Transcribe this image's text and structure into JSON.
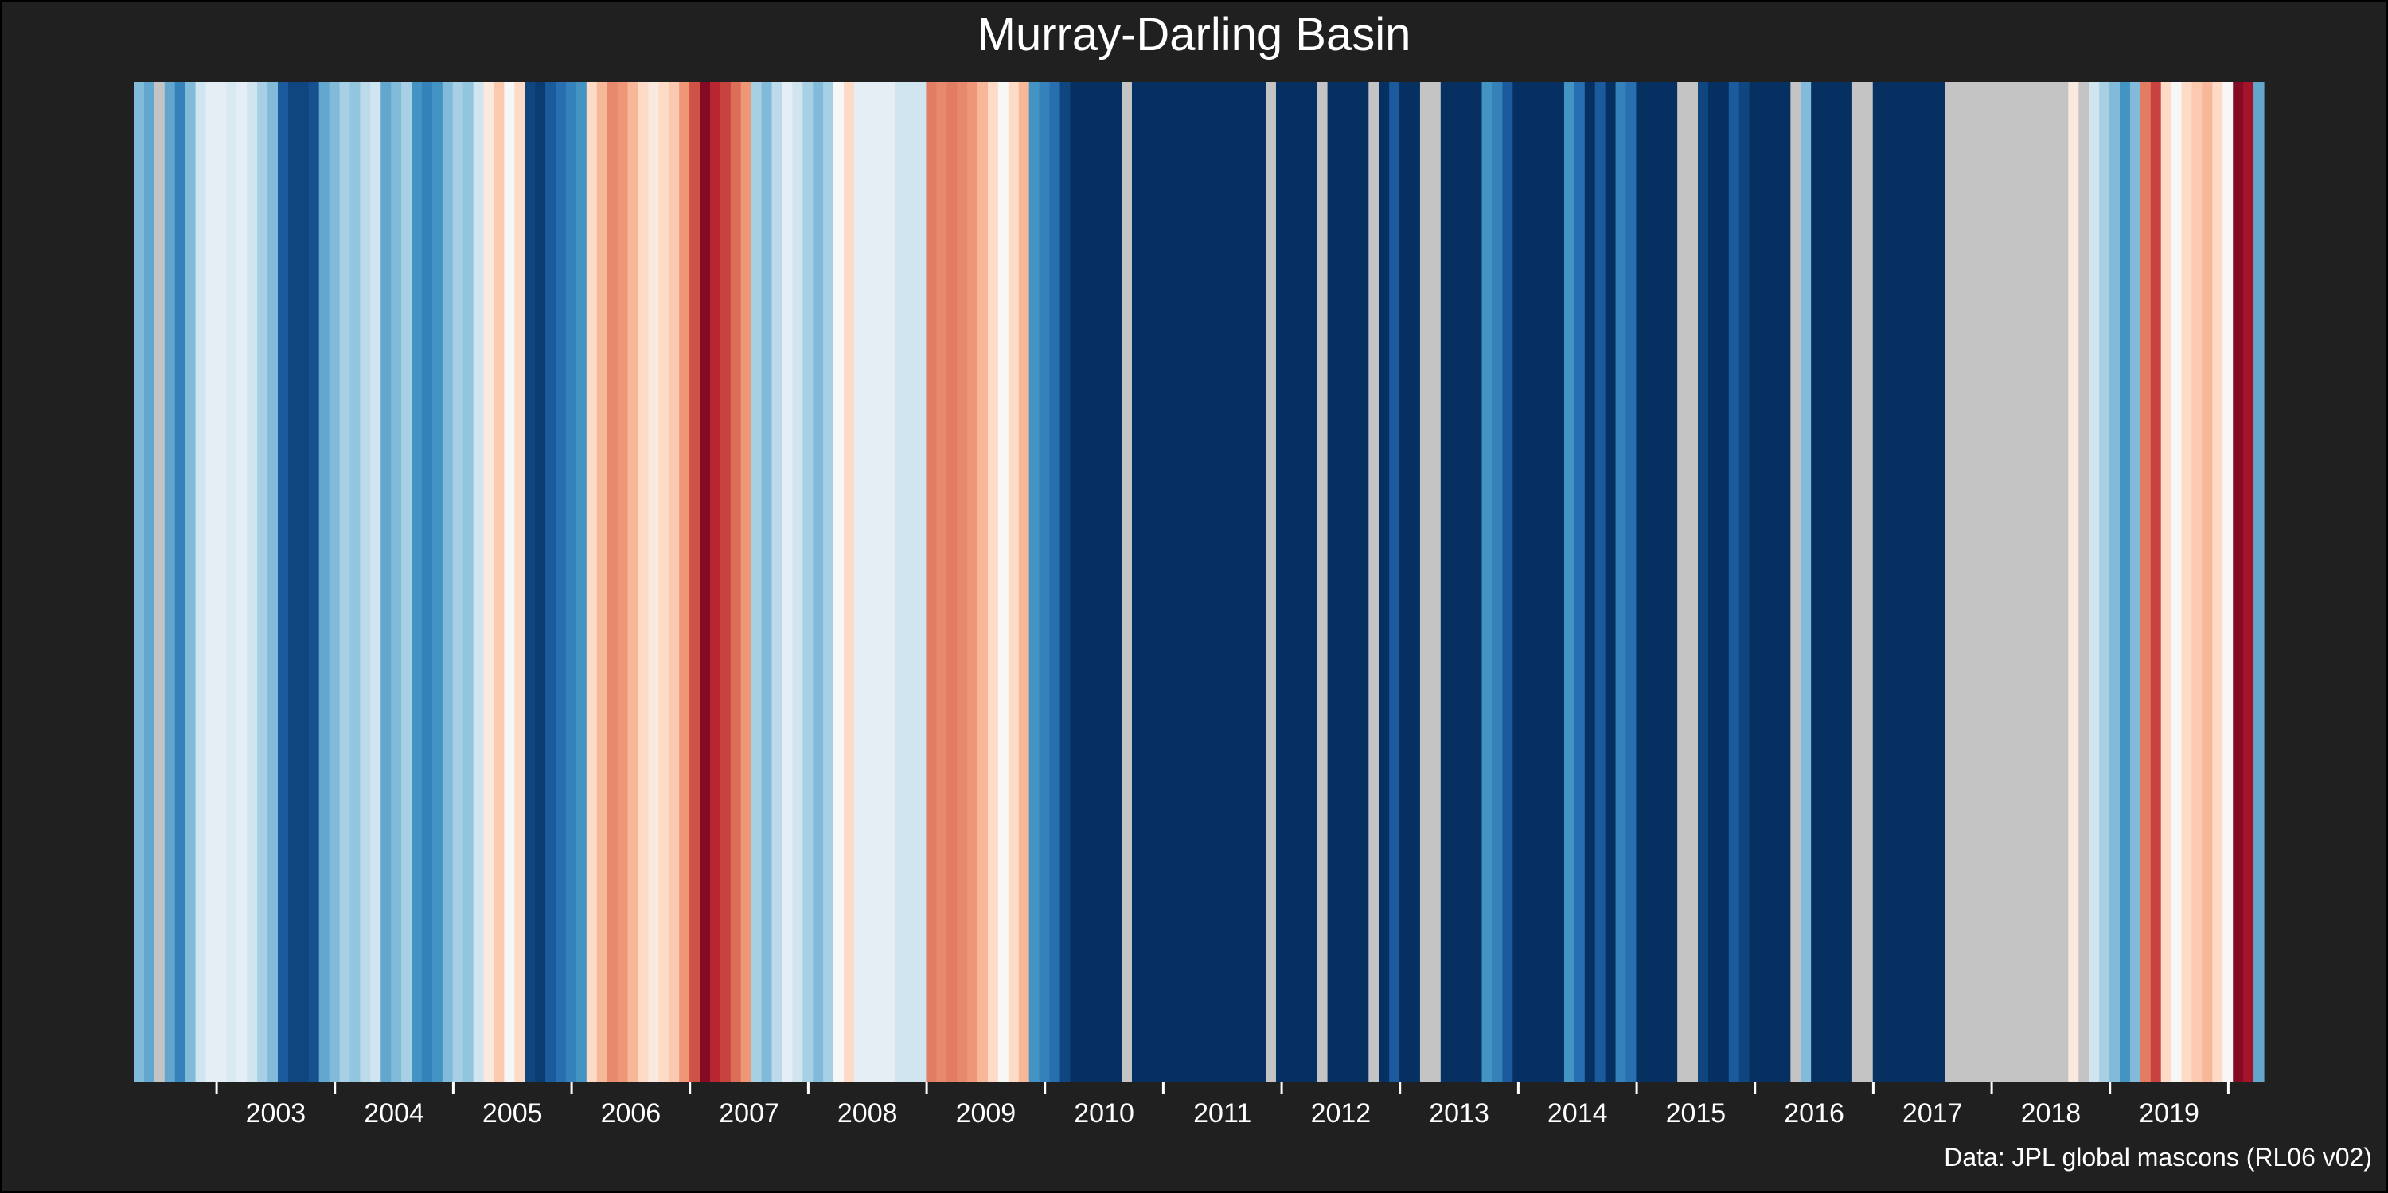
{
  "chart_data": {
    "type": "warming-stripes",
    "title": "Murray-Darling Basin",
    "source_note": "Data: JPL global mascons (RL06 v02)",
    "x_range": [
      2002.3,
      2020.3
    ],
    "tick_labels": [
      "2003",
      "2004",
      "2005",
      "2006",
      "2007",
      "2008",
      "2009",
      "2010",
      "2011",
      "2012",
      "2013",
      "2014",
      "2015",
      "2016",
      "2017",
      "2018",
      "2019"
    ],
    "color_scale": {
      "low": "#b2182b",
      "mid": "#f7f7f7",
      "high": "#053061",
      "missing": "#c4c4c4",
      "note_missing": "grey stripes mark months without data"
    },
    "anomaly_range": [
      -1,
      1
    ],
    "series": [
      {
        "values": [
          0.3,
          0.4,
          null,
          0.4,
          0.6,
          0.3,
          0.1,
          0.05,
          0.05,
          0.08,
          0.05,
          0.1,
          0.2,
          0.3,
          0.8,
          0.9,
          0.9,
          0.85,
          0.4,
          0.3,
          0.2,
          0.25,
          0.15,
          0.1,
          0.4,
          0.3,
          0.2,
          0.5,
          0.6,
          0.5,
          0.3,
          0.2,
          0.25,
          0.1,
          -0.05,
          -0.15,
          0.0,
          -0.1,
          0.9,
          0.95,
          0.8,
          0.7,
          0.6,
          0.5,
          -0.1,
          -0.2,
          -0.35,
          -0.3,
          -0.2,
          -0.1,
          -0.05,
          -0.1,
          -0.15,
          -0.3,
          -0.55,
          -0.9,
          -0.7,
          -0.6,
          -0.45,
          -0.3,
          0.2,
          0.3,
          0.15,
          0.05,
          0.1,
          0.2,
          0.3,
          0.2,
          0.0,
          -0.1,
          0.05,
          0.05,
          0.05,
          0.05,
          0.1,
          0.1,
          0.1,
          -0.4,
          -0.35,
          -0.4,
          -0.35,
          -0.3,
          -0.2,
          -0.1,
          0.0,
          -0.1,
          -0.2,
          0.5,
          0.6,
          0.7,
          0.9,
          1.0,
          1.0,
          1.0,
          1.0,
          1.0,
          null,
          1.0,
          1.0,
          1.0,
          1.0,
          1.0,
          1.0,
          1.0,
          1.0,
          1.0,
          1.0,
          1.0,
          1.0,
          1.0,
          null,
          1.0,
          1.0,
          1.0,
          1.0,
          null,
          1.0,
          1.0,
          1.0,
          1.0,
          null,
          1.0,
          0.8,
          1.0,
          1.0,
          null,
          null,
          1.0,
          1.0,
          1.0,
          1.0,
          0.5,
          0.6,
          0.8,
          1.0,
          1.0,
          1.0,
          1.0,
          1.0,
          0.5,
          0.7,
          1.0,
          0.8,
          1.0,
          0.6,
          0.7,
          1.0,
          1.0,
          1.0,
          1.0,
          null,
          null,
          0.9,
          1.0,
          1.0,
          0.8,
          0.9,
          1.0,
          1.0,
          1.0,
          1.0,
          null,
          0.3,
          1.0,
          1.0,
          1.0,
          1.0,
          null,
          null,
          1.0,
          1.0,
          1.0,
          1.0,
          1.0,
          1.0,
          1.0,
          null,
          null,
          null,
          null,
          null,
          null,
          null,
          null,
          null,
          null,
          null,
          null,
          -0.05,
          null,
          0.1,
          0.2,
          0.3,
          0.5,
          0.3,
          -0.4,
          -0.6,
          -0.1,
          0.0,
          -0.1,
          -0.15,
          -0.2,
          -0.1,
          0.0,
          -0.9,
          -0.8,
          0.4
        ]
      }
    ],
    "grid": false,
    "legend": "none"
  }
}
